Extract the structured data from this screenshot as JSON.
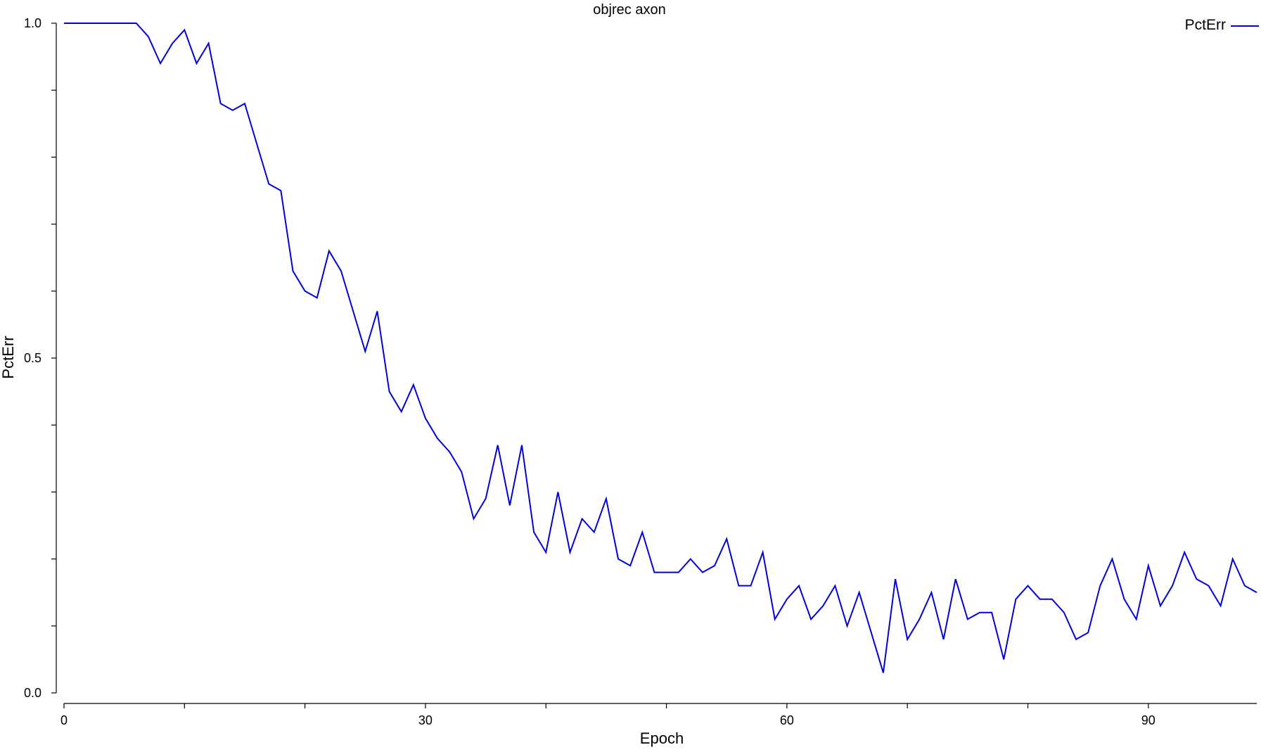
{
  "chart_data": {
    "type": "line",
    "title": "objrec axon",
    "xlabel": "Epoch",
    "ylabel": "PctErr",
    "xlim": [
      0,
      99
    ],
    "ylim": [
      0,
      1
    ],
    "xticks": [
      0,
      10,
      20,
      30,
      40,
      50,
      60,
      70,
      80,
      90
    ],
    "xtick_labels": [
      "0",
      "",
      "",
      "30",
      "",
      "",
      "60",
      "",
      "",
      "90"
    ],
    "yticks": [
      0,
      0.1,
      0.2,
      0.3,
      0.4,
      0.5,
      0.6,
      0.7,
      0.8,
      0.9,
      1.0
    ],
    "ytick_labels": [
      "0.0",
      "",
      "",
      "",
      "",
      "0.5",
      "",
      "",
      "",
      "",
      "1.0"
    ],
    "grid": false,
    "legend": "top-right",
    "line_color": "#0000e0",
    "series": [
      {
        "name": "PctErr",
        "color": "#0000e0",
        "x": [
          0,
          1,
          2,
          3,
          4,
          5,
          6,
          7,
          8,
          9,
          10,
          11,
          12,
          13,
          14,
          15,
          16,
          17,
          18,
          19,
          20,
          21,
          22,
          23,
          24,
          25,
          26,
          27,
          28,
          29,
          30,
          31,
          32,
          33,
          34,
          35,
          36,
          37,
          38,
          39,
          40,
          41,
          42,
          43,
          44,
          45,
          46,
          47,
          48,
          49,
          50,
          51,
          52,
          53,
          54,
          55,
          56,
          57,
          58,
          59,
          60,
          61,
          62,
          63,
          64,
          65,
          66,
          67,
          68,
          69,
          70,
          71,
          72,
          73,
          74,
          75,
          76,
          77,
          78,
          79,
          80,
          81,
          82,
          83,
          84,
          85,
          86,
          87,
          88,
          89,
          90,
          91,
          92,
          93,
          94,
          95,
          96,
          97,
          98,
          99
        ],
        "values": [
          1.0,
          1.0,
          1.0,
          1.0,
          1.0,
          1.0,
          1.0,
          0.98,
          0.94,
          0.97,
          0.99,
          0.94,
          0.97,
          0.88,
          0.87,
          0.88,
          0.82,
          0.76,
          0.75,
          0.63,
          0.6,
          0.59,
          0.66,
          0.63,
          0.57,
          0.51,
          0.57,
          0.45,
          0.42,
          0.46,
          0.41,
          0.38,
          0.36,
          0.33,
          0.26,
          0.29,
          0.37,
          0.28,
          0.37,
          0.24,
          0.21,
          0.3,
          0.21,
          0.26,
          0.24,
          0.29,
          0.2,
          0.19,
          0.24,
          0.18,
          0.18,
          0.18,
          0.2,
          0.18,
          0.19,
          0.23,
          0.16,
          0.16,
          0.21,
          0.11,
          0.14,
          0.16,
          0.11,
          0.13,
          0.16,
          0.1,
          0.15,
          0.09,
          0.03,
          0.17,
          0.08,
          0.11,
          0.15,
          0.08,
          0.17,
          0.11,
          0.12,
          0.12,
          0.05,
          0.14,
          0.16,
          0.14,
          0.14,
          0.12,
          0.08,
          0.09,
          0.16,
          0.2,
          0.14,
          0.11,
          0.19,
          0.13,
          0.16,
          0.21,
          0.17,
          0.16,
          0.13,
          0.2,
          0.16,
          0.15
        ]
      }
    ]
  }
}
